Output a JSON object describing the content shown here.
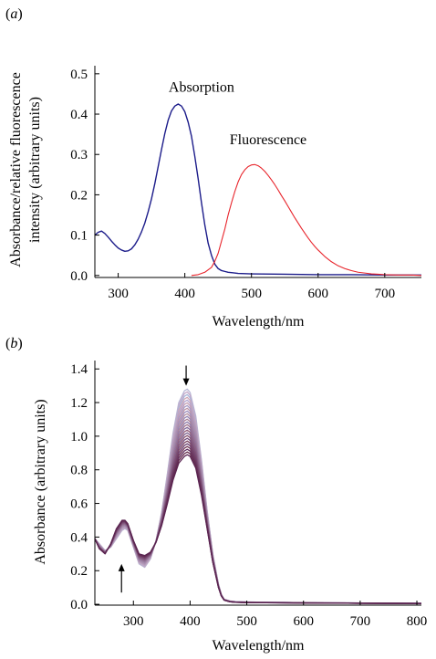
{
  "chart_data": [
    {
      "panel": "(a)",
      "panel_open": "(",
      "panel_letter": "a",
      "panel_close": ")",
      "type": "line",
      "xlabel": "Wavelength/nm",
      "ylabel_lines": [
        "Absorbance/relative fluorescence",
        "intensity (arbitrary units)"
      ],
      "xlim": [
        265,
        755
      ],
      "ylim": [
        -0.005,
        0.52
      ],
      "x_ticks": [
        300,
        400,
        500,
        600,
        700
      ],
      "y_ticks": [
        0.0,
        0.1,
        0.2,
        0.3,
        0.4,
        0.5
      ],
      "y_tick_labels": [
        "0.0",
        "0.1",
        "0.2",
        "0.3",
        "0.4",
        "0.5"
      ],
      "annotations": [
        {
          "text": "Absorption",
          "x": 425,
          "y": 0.455
        },
        {
          "text": "Fluorescence",
          "x": 525,
          "y": 0.325
        }
      ],
      "series": [
        {
          "color": "#1c1c8a",
          "x": [
            265,
            270,
            275,
            280,
            285,
            290,
            295,
            300,
            305,
            310,
            315,
            320,
            325,
            330,
            335,
            340,
            345,
            350,
            355,
            360,
            365,
            370,
            375,
            380,
            385,
            390,
            395,
            400,
            405,
            410,
            415,
            420,
            425,
            430,
            435,
            440,
            445,
            450,
            455,
            460,
            465,
            470,
            480,
            500,
            550,
            600,
            650,
            700,
            755
          ],
          "y": [
            0.1,
            0.107,
            0.11,
            0.104,
            0.095,
            0.085,
            0.076,
            0.068,
            0.063,
            0.06,
            0.061,
            0.066,
            0.076,
            0.09,
            0.108,
            0.13,
            0.158,
            0.19,
            0.228,
            0.27,
            0.312,
            0.352,
            0.385,
            0.408,
            0.42,
            0.425,
            0.42,
            0.406,
            0.38,
            0.345,
            0.295,
            0.24,
            0.18,
            0.125,
            0.08,
            0.05,
            0.028,
            0.017,
            0.012,
            0.01,
            0.008,
            0.007,
            0.005,
            0.004,
            0.003,
            0.002,
            0.002,
            0.001,
            0.001
          ]
        },
        {
          "color": "#e8242b",
          "x": [
            410,
            420,
            430,
            440,
            445,
            450,
            455,
            460,
            465,
            470,
            475,
            480,
            485,
            490,
            495,
            500,
            505,
            510,
            515,
            520,
            525,
            530,
            535,
            540,
            545,
            550,
            555,
            560,
            565,
            570,
            575,
            580,
            585,
            590,
            595,
            600,
            610,
            620,
            630,
            640,
            650,
            660,
            670,
            680,
            690,
            700,
            720,
            740,
            755
          ],
          "y": [
            0.0,
            0.002,
            0.008,
            0.02,
            0.035,
            0.055,
            0.085,
            0.115,
            0.15,
            0.18,
            0.208,
            0.232,
            0.25,
            0.262,
            0.27,
            0.274,
            0.275,
            0.272,
            0.266,
            0.258,
            0.248,
            0.237,
            0.225,
            0.212,
            0.198,
            0.185,
            0.171,
            0.157,
            0.143,
            0.13,
            0.117,
            0.105,
            0.093,
            0.082,
            0.072,
            0.063,
            0.047,
            0.034,
            0.024,
            0.017,
            0.012,
            0.008,
            0.006,
            0.004,
            0.003,
            0.002,
            0.001,
            0.001,
            0.0
          ]
        }
      ]
    },
    {
      "panel": "(b)",
      "panel_open": "(",
      "panel_letter": "b",
      "panel_close": ")",
      "type": "line",
      "xlabel": "Wavelength/nm",
      "ylabel": "Absorbance (arbitrary units)",
      "xlim": [
        232,
        808
      ],
      "ylim": [
        -0.005,
        1.45
      ],
      "x_ticks": [
        300,
        400,
        500,
        600,
        700,
        800
      ],
      "y_ticks": [
        0.0,
        0.2,
        0.4,
        0.6,
        0.8,
        1.0,
        1.2,
        1.4
      ],
      "y_tick_labels": [
        "0.0",
        "0.2",
        "0.4",
        "0.6",
        "0.8",
        "1.0",
        "1.2",
        "1.4"
      ],
      "arrows": [
        {
          "direction": "down",
          "x": 393,
          "y_tail": 1.42,
          "y_head": 1.3
        },
        {
          "direction": "up",
          "x": 279,
          "y_tail": 0.07,
          "y_head": 0.24
        }
      ],
      "series_family": {
        "count": 25,
        "x": [
          232,
          240,
          250,
          260,
          270,
          280,
          285,
          290,
          300,
          310,
          320,
          330,
          340,
          350,
          360,
          370,
          380,
          390,
          395,
          400,
          410,
          420,
          430,
          440,
          450,
          455,
          460,
          470,
          480,
          500,
          600,
          700,
          808
        ],
        "first": [
          0.39,
          0.36,
          0.32,
          0.34,
          0.39,
          0.44,
          0.45,
          0.44,
          0.34,
          0.24,
          0.22,
          0.27,
          0.38,
          0.55,
          0.78,
          1.02,
          1.2,
          1.27,
          1.28,
          1.26,
          1.12,
          0.86,
          0.56,
          0.3,
          0.12,
          0.06,
          0.03,
          0.02,
          0.016,
          0.014,
          0.01,
          0.008,
          0.006
        ],
        "last": [
          0.39,
          0.33,
          0.3,
          0.36,
          0.45,
          0.5,
          0.5,
          0.48,
          0.38,
          0.3,
          0.29,
          0.31,
          0.37,
          0.47,
          0.6,
          0.74,
          0.84,
          0.88,
          0.89,
          0.88,
          0.81,
          0.65,
          0.45,
          0.25,
          0.1,
          0.05,
          0.025,
          0.015,
          0.012,
          0.01,
          0.008,
          0.006,
          0.005
        ],
        "colors": [
          "#b8b8d6",
          "#c4a9c9",
          "#a9b6d9",
          "#d0a7b5",
          "#b3a6d1",
          "#c59fb3",
          "#a69bc6",
          "#bd96a8",
          "#9e8fbf",
          "#b48ea0",
          "#9787b6",
          "#a98196",
          "#8e7baa",
          "#9f718a",
          "#876f9e",
          "#94617c",
          "#7e628f",
          "#885470",
          "#744e7f",
          "#7d4764",
          "#6a3f70",
          "#713958",
          "#602f5f",
          "#652c4c",
          "#5a2452"
        ]
      }
    }
  ]
}
